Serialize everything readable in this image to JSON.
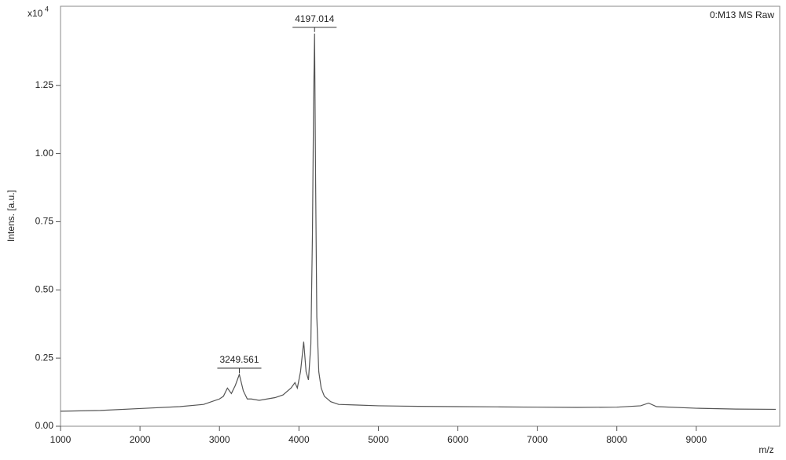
{
  "chart_data": {
    "type": "line",
    "legend_text": "0:M13 MS Raw",
    "x_label": "m/z",
    "y_label": "Intens. [a.u.]",
    "y_scale_label": {
      "base": "x10",
      "exponent": "4"
    },
    "xlim": [
      1000,
      10050
    ],
    "ylim": [
      0,
      1.54
    ],
    "xticks": [
      1000,
      2000,
      3000,
      4000,
      5000,
      6000,
      7000,
      8000,
      9000
    ],
    "yticks": [
      {
        "value": 0,
        "label": "0.00"
      },
      {
        "value": 0.25,
        "label": "0.25"
      },
      {
        "value": 0.5,
        "label": "0.50"
      },
      {
        "value": 0.75,
        "label": "0.75"
      },
      {
        "value": 1,
        "label": "1.00"
      },
      {
        "value": 1.25,
        "label": "1.25"
      }
    ],
    "x": [
      1000,
      1500,
      2000,
      2500,
      2800,
      3000,
      3050,
      3100,
      3150,
      3200,
      3250,
      3300,
      3350,
      3400,
      3500,
      3600,
      3700,
      3800,
      3900,
      3950,
      3980,
      4020,
      4060,
      4090,
      4120,
      4150,
      4170,
      4185,
      4197,
      4210,
      4225,
      4250,
      4280,
      4320,
      4400,
      4500,
      4700,
      5000,
      5500,
      6000,
      6500,
      7000,
      7500,
      8000,
      8300,
      8400,
      8500,
      9000,
      9500,
      10000
    ],
    "series": [
      {
        "name": "0:M13 MS Raw",
        "color": "#555555",
        "values": [
          0.055,
          0.058,
          0.065,
          0.072,
          0.08,
          0.1,
          0.11,
          0.14,
          0.12,
          0.15,
          0.19,
          0.13,
          0.1,
          0.1,
          0.095,
          0.1,
          0.105,
          0.115,
          0.14,
          0.16,
          0.14,
          0.2,
          0.31,
          0.2,
          0.17,
          0.3,
          0.7,
          1.2,
          1.44,
          0.9,
          0.4,
          0.2,
          0.14,
          0.11,
          0.09,
          0.08,
          0.078,
          0.075,
          0.073,
          0.072,
          0.071,
          0.07,
          0.069,
          0.07,
          0.075,
          0.085,
          0.072,
          0.066,
          0.063,
          0.062
        ]
      }
    ],
    "annotations": [
      {
        "text": "3249.561",
        "x": 3250,
        "y": 0.19
      },
      {
        "text": "4197.014",
        "x": 4197,
        "y": 1.44
      }
    ]
  }
}
